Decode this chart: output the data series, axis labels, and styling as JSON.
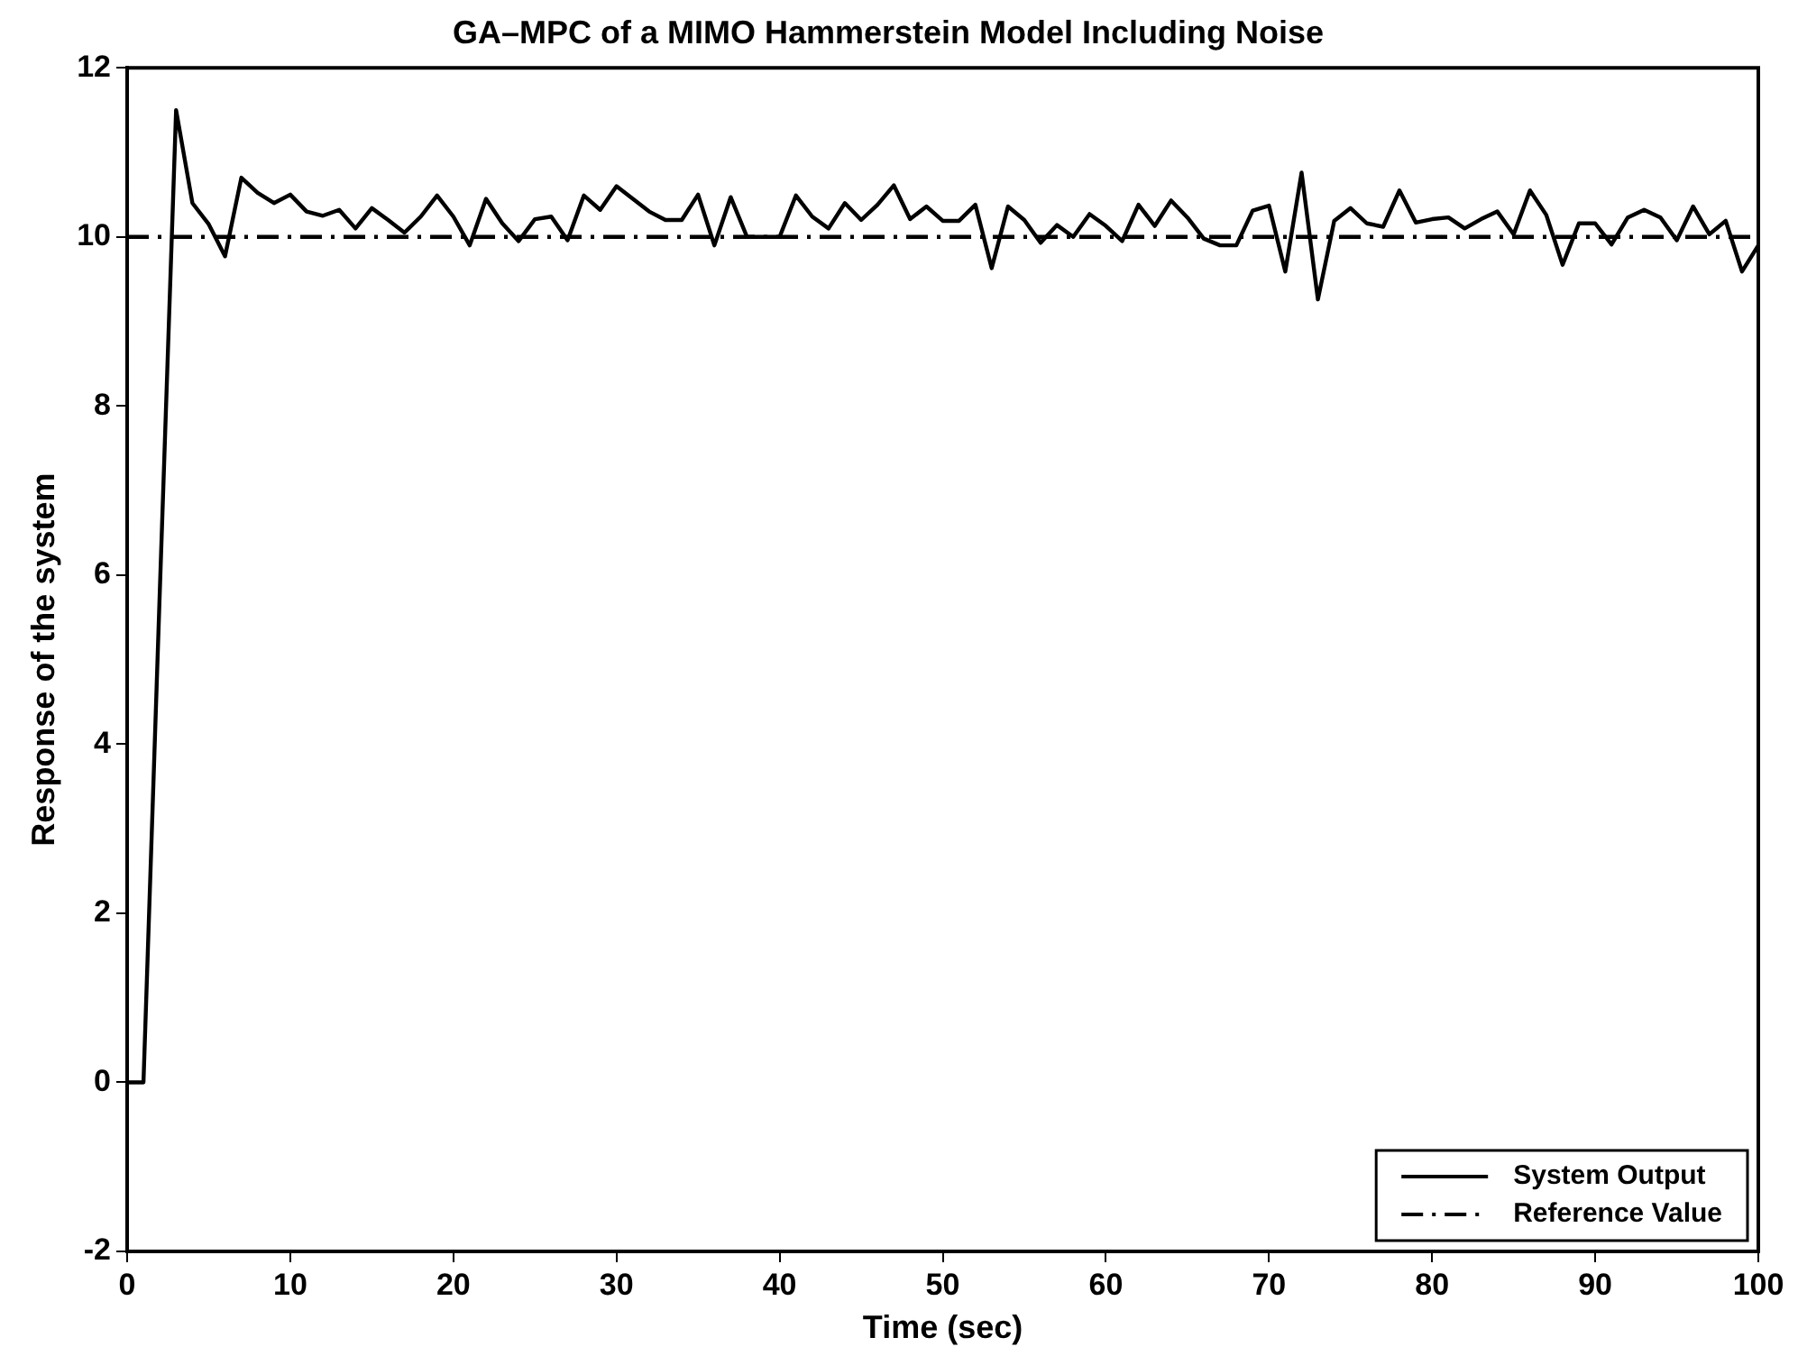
{
  "chart_data": {
    "type": "line",
    "title": "GA–MPC of a MIMO Hammerstein Model Including Noise",
    "xlabel": "Time (sec)",
    "ylabel": "Response of the system",
    "x": [
      0,
      1,
      2,
      3,
      4,
      5,
      6,
      7,
      8,
      9,
      10,
      11,
      12,
      13,
      14,
      15,
      16,
      17,
      18,
      19,
      20,
      21,
      22,
      23,
      24,
      25,
      26,
      27,
      28,
      29,
      30,
      31,
      32,
      33,
      34,
      35,
      36,
      37,
      38,
      39,
      40,
      41,
      42,
      43,
      44,
      45,
      46,
      47,
      48,
      49,
      50,
      51,
      52,
      53,
      54,
      55,
      56,
      57,
      58,
      59,
      60,
      61,
      62,
      63,
      64,
      65,
      66,
      67,
      68,
      69,
      70,
      71,
      72,
      73,
      74,
      75,
      76,
      77,
      78,
      79,
      80,
      81,
      82,
      83,
      84,
      85,
      86,
      87,
      88,
      89,
      90,
      91,
      92,
      93,
      94,
      95,
      96,
      97,
      98,
      99,
      100
    ],
    "series": [
      {
        "name": "System Output",
        "color": "#000000",
        "line_style": "solid",
        "values": [
          0,
          0,
          5.8,
          11.5,
          10.4,
          10.15,
          9.77,
          10.7,
          10.52,
          10.4,
          10.5,
          10.3,
          10.25,
          10.32,
          10.1,
          10.34,
          10.2,
          10.05,
          10.24,
          10.49,
          10.24,
          9.9,
          10.45,
          10.16,
          9.95,
          10.21,
          10.24,
          9.96,
          10.49,
          10.32,
          10.6,
          10.45,
          10.3,
          10.2,
          10.2,
          10.5,
          9.9,
          10.47,
          10.0,
          10.0,
          10.0,
          10.49,
          10.24,
          10.1,
          10.4,
          10.2,
          10.38,
          10.61,
          10.21,
          10.36,
          10.19,
          10.19,
          10.38,
          9.63,
          10.36,
          10.2,
          9.93,
          10.14,
          10.0,
          10.27,
          10.13,
          9.95,
          10.38,
          10.13,
          10.43,
          10.23,
          9.98,
          9.9,
          9.9,
          10.31,
          10.37,
          9.59,
          10.76,
          9.26,
          10.19,
          10.34,
          10.16,
          10.12,
          10.55,
          10.17,
          10.21,
          10.23,
          10.1,
          10.21,
          10.3,
          10.03,
          10.55,
          10.26,
          9.67,
          10.16,
          10.16,
          9.91,
          10.23,
          10.32,
          10.23,
          9.96,
          10.36,
          10.03,
          10.19,
          9.59,
          9.9
        ]
      },
      {
        "name": "Reference Value",
        "color": "#000000",
        "line_style": "dashed",
        "x": [
          0,
          100
        ],
        "values": [
          10,
          10
        ]
      }
    ],
    "xlim": [
      0,
      100
    ],
    "xticks": [
      0,
      10,
      20,
      30,
      40,
      50,
      60,
      70,
      80,
      90,
      100
    ],
    "ylim": [
      -2,
      12
    ],
    "yticks": [
      -2,
      0,
      2,
      4,
      6,
      8,
      10,
      12
    ],
    "grid": false,
    "legend": "bottom right",
    "marker": "none"
  }
}
